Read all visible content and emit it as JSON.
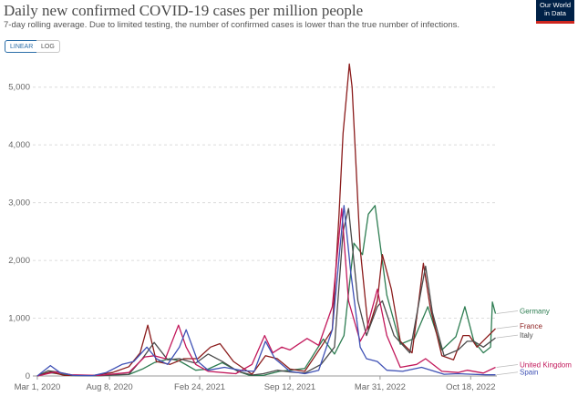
{
  "header": {
    "title": "Daily new confirmed COVID-19 cases per million people",
    "subtitle": "7-day rolling average. Due to limited testing, the number of confirmed cases is lower than the true number of infections.",
    "logo_line1": "Our World",
    "logo_line2": "in Data"
  },
  "controls": {
    "linear_label": "LINEAR",
    "log_label": "LOG",
    "active": "linear"
  },
  "chart_data": {
    "type": "line",
    "title": "Daily new confirmed COVID-19 cases per million people",
    "xlabel": "",
    "ylabel": "",
    "ylim": [
      0,
      5500
    ],
    "xlim": [
      "2020-02-20",
      "2022-12-15"
    ],
    "y_ticks": [
      0,
      1000,
      2000,
      3000,
      4000,
      5000
    ],
    "y_tick_labels": [
      "0",
      "1,000",
      "2,000",
      "3,000",
      "4,000",
      "5,000"
    ],
    "x_ticks": [
      "2020-03-01",
      "2020-08-08",
      "2021-02-24",
      "2021-09-12",
      "2022-03-31",
      "2022-10-18"
    ],
    "x_tick_labels": [
      "Mar 1, 2020",
      "Aug 8, 2020",
      "Feb 24, 2021",
      "Sep 12, 2021",
      "Mar 31, 2022",
      "Oct 18, 2022"
    ],
    "grid": "horizontal dashed",
    "legend": "right",
    "series": [
      {
        "name": "Germany",
        "color": "#2e7d52",
        "label_y": 1080,
        "points": [
          [
            "2020-03-01",
            0
          ],
          [
            "2020-03-25",
            60
          ],
          [
            "2020-04-15",
            40
          ],
          [
            "2020-05-15",
            8
          ],
          [
            "2020-07-15",
            5
          ],
          [
            "2020-08-20",
            18
          ],
          [
            "2020-09-20",
            25
          ],
          [
            "2020-10-20",
            120
          ],
          [
            "2020-11-15",
            230
          ],
          [
            "2020-12-20",
            300
          ],
          [
            "2021-01-10",
            260
          ],
          [
            "2021-02-15",
            100
          ],
          [
            "2021-03-15",
            120
          ],
          [
            "2021-04-15",
            230
          ],
          [
            "2021-05-20",
            80
          ],
          [
            "2021-06-15",
            10
          ],
          [
            "2021-07-15",
            10
          ],
          [
            "2021-08-20",
            80
          ],
          [
            "2021-09-12",
            100
          ],
          [
            "2021-10-15",
            130
          ],
          [
            "2021-11-25",
            640
          ],
          [
            "2021-12-20",
            380
          ],
          [
            "2022-01-10",
            700
          ],
          [
            "2022-02-01",
            2300
          ],
          [
            "2022-02-20",
            2100
          ],
          [
            "2022-03-05",
            2800
          ],
          [
            "2022-03-20",
            2950
          ],
          [
            "2022-04-15",
            1400
          ],
          [
            "2022-05-15",
            550
          ],
          [
            "2022-06-15",
            650
          ],
          [
            "2022-07-15",
            1200
          ],
          [
            "2022-08-15",
            450
          ],
          [
            "2022-09-15",
            680
          ],
          [
            "2022-10-05",
            1200
          ],
          [
            "2022-10-25",
            600
          ],
          [
            "2022-11-15",
            400
          ],
          [
            "2022-12-01",
            500
          ],
          [
            "2022-12-05",
            1280
          ],
          [
            "2022-12-12",
            1080
          ]
        ]
      },
      {
        "name": "France",
        "color": "#8b1c1c",
        "label_y": 820,
        "points": [
          [
            "2020-03-01",
            0
          ],
          [
            "2020-03-30",
            70
          ],
          [
            "2020-04-30",
            10
          ],
          [
            "2020-07-01",
            8
          ],
          [
            "2020-08-15",
            60
          ],
          [
            "2020-09-20",
            160
          ],
          [
            "2020-10-15",
            400
          ],
          [
            "2020-11-01",
            880
          ],
          [
            "2020-11-20",
            250
          ],
          [
            "2020-12-20",
            200
          ],
          [
            "2021-01-20",
            300
          ],
          [
            "2021-02-20",
            300
          ],
          [
            "2021-03-20",
            500
          ],
          [
            "2021-04-10",
            560
          ],
          [
            "2021-05-10",
            250
          ],
          [
            "2021-06-20",
            30
          ],
          [
            "2021-07-20",
            350
          ],
          [
            "2021-08-15",
            300
          ],
          [
            "2021-09-12",
            120
          ],
          [
            "2021-10-15",
            80
          ],
          [
            "2021-11-20",
            500
          ],
          [
            "2021-12-15",
            800
          ],
          [
            "2021-12-30",
            2800
          ],
          [
            "2022-01-08",
            4200
          ],
          [
            "2022-01-15",
            4800
          ],
          [
            "2022-01-22",
            5400
          ],
          [
            "2022-01-28",
            5000
          ],
          [
            "2022-02-15",
            2200
          ],
          [
            "2022-03-05",
            800
          ],
          [
            "2022-03-25",
            1300
          ],
          [
            "2022-04-05",
            2100
          ],
          [
            "2022-04-25",
            1500
          ],
          [
            "2022-05-15",
            600
          ],
          [
            "2022-06-10",
            400
          ],
          [
            "2022-06-25",
            1300
          ],
          [
            "2022-07-05",
            1950
          ],
          [
            "2022-07-20",
            1200
          ],
          [
            "2022-08-15",
            350
          ],
          [
            "2022-09-10",
            280
          ],
          [
            "2022-10-01",
            700
          ],
          [
            "2022-10-15",
            700
          ],
          [
            "2022-11-01",
            500
          ],
          [
            "2022-11-20",
            650
          ],
          [
            "2022-12-12",
            820
          ]
        ]
      },
      {
        "name": "Italy",
        "color": "#4b4b4b",
        "label_y": 660,
        "points": [
          [
            "2020-03-01",
            0
          ],
          [
            "2020-03-25",
            90
          ],
          [
            "2020-04-15",
            70
          ],
          [
            "2020-05-20",
            10
          ],
          [
            "2020-07-15",
            5
          ],
          [
            "2020-08-20",
            20
          ],
          [
            "2020-09-20",
            30
          ],
          [
            "2020-10-20",
            300
          ],
          [
            "2020-11-15",
            580
          ],
          [
            "2020-12-15",
            280
          ],
          [
            "2021-01-10",
            300
          ],
          [
            "2021-02-15",
            220
          ],
          [
            "2021-03-15",
            380
          ],
          [
            "2021-04-15",
            250
          ],
          [
            "2021-05-20",
            80
          ],
          [
            "2021-06-20",
            15
          ],
          [
            "2021-07-15",
            40
          ],
          [
            "2021-08-15",
            100
          ],
          [
            "2021-09-12",
            70
          ],
          [
            "2021-10-15",
            50
          ],
          [
            "2021-11-20",
            200
          ],
          [
            "2021-12-20",
            500
          ],
          [
            "2022-01-08",
            2500
          ],
          [
            "2022-01-20",
            2900
          ],
          [
            "2022-02-10",
            1300
          ],
          [
            "2022-03-01",
            700
          ],
          [
            "2022-03-25",
            1200
          ],
          [
            "2022-04-05",
            1300
          ],
          [
            "2022-05-01",
            700
          ],
          [
            "2022-06-05",
            400
          ],
          [
            "2022-07-10",
            1900
          ],
          [
            "2022-07-25",
            1100
          ],
          [
            "2022-08-20",
            350
          ],
          [
            "2022-09-20",
            450
          ],
          [
            "2022-10-10",
            600
          ],
          [
            "2022-10-25",
            600
          ],
          [
            "2022-11-15",
            500
          ],
          [
            "2022-12-12",
            660
          ]
        ]
      },
      {
        "name": "United Kingdom",
        "color": "#c2185b",
        "label_y": 150,
        "points": [
          [
            "2020-03-01",
            0
          ],
          [
            "2020-04-10",
            70
          ],
          [
            "2020-05-15",
            20
          ],
          [
            "2020-07-15",
            10
          ],
          [
            "2020-09-20",
            60
          ],
          [
            "2020-10-25",
            330
          ],
          [
            "2020-11-15",
            350
          ],
          [
            "2020-12-10",
            300
          ],
          [
            "2021-01-08",
            880
          ],
          [
            "2021-01-25",
            500
          ],
          [
            "2021-02-15",
            200
          ],
          [
            "2021-03-15",
            80
          ],
          [
            "2021-05-15",
            40
          ],
          [
            "2021-06-20",
            200
          ],
          [
            "2021-07-18",
            700
          ],
          [
            "2021-08-05",
            400
          ],
          [
            "2021-08-25",
            500
          ],
          [
            "2021-09-12",
            450
          ],
          [
            "2021-10-20",
            650
          ],
          [
            "2021-11-15",
            530
          ],
          [
            "2021-12-15",
            1200
          ],
          [
            "2022-01-05",
            2900
          ],
          [
            "2022-01-20",
            1300
          ],
          [
            "2022-02-15",
            600
          ],
          [
            "2022-03-01",
            800
          ],
          [
            "2022-03-25",
            1500
          ],
          [
            "2022-04-15",
            700
          ],
          [
            "2022-05-15",
            150
          ],
          [
            "2022-06-20",
            200
          ],
          [
            "2022-07-10",
            300
          ],
          [
            "2022-08-15",
            80
          ],
          [
            "2022-09-20",
            60
          ],
          [
            "2022-10-10",
            100
          ],
          [
            "2022-11-15",
            50
          ],
          [
            "2022-12-12",
            150
          ]
        ]
      },
      {
        "name": "Spain",
        "color": "#3f51b5",
        "label_y": 20,
        "points": [
          [
            "2020-03-01",
            0
          ],
          [
            "2020-03-30",
            180
          ],
          [
            "2020-04-20",
            60
          ],
          [
            "2020-05-20",
            10
          ],
          [
            "2020-07-01",
            5
          ],
          [
            "2020-08-01",
            60
          ],
          [
            "2020-09-05",
            200
          ],
          [
            "2020-10-01",
            250
          ],
          [
            "2020-10-30",
            500
          ],
          [
            "2020-11-20",
            300
          ],
          [
            "2020-12-15",
            200
          ],
          [
            "2021-01-10",
            500
          ],
          [
            "2021-01-25",
            800
          ],
          [
            "2021-02-20",
            250
          ],
          [
            "2021-03-15",
            100
          ],
          [
            "2021-04-20",
            150
          ],
          [
            "2021-06-01",
            90
          ],
          [
            "2021-06-25",
            80
          ],
          [
            "2021-07-20",
            600
          ],
          [
            "2021-08-10",
            300
          ],
          [
            "2021-09-12",
            80
          ],
          [
            "2021-10-15",
            40
          ],
          [
            "2021-11-15",
            100
          ],
          [
            "2021-12-15",
            800
          ],
          [
            "2022-01-10",
            2950
          ],
          [
            "2022-01-25",
            1800
          ],
          [
            "2022-02-15",
            500
          ],
          [
            "2022-03-01",
            300
          ],
          [
            "2022-03-25",
            250
          ],
          [
            "2022-04-15",
            100
          ],
          [
            "2022-05-20",
            80
          ],
          [
            "2022-07-01",
            150
          ],
          [
            "2022-08-20",
            30
          ],
          [
            "2022-09-20",
            40
          ],
          [
            "2022-10-20",
            30
          ],
          [
            "2022-11-20",
            20
          ],
          [
            "2022-12-12",
            20
          ]
        ]
      }
    ]
  }
}
